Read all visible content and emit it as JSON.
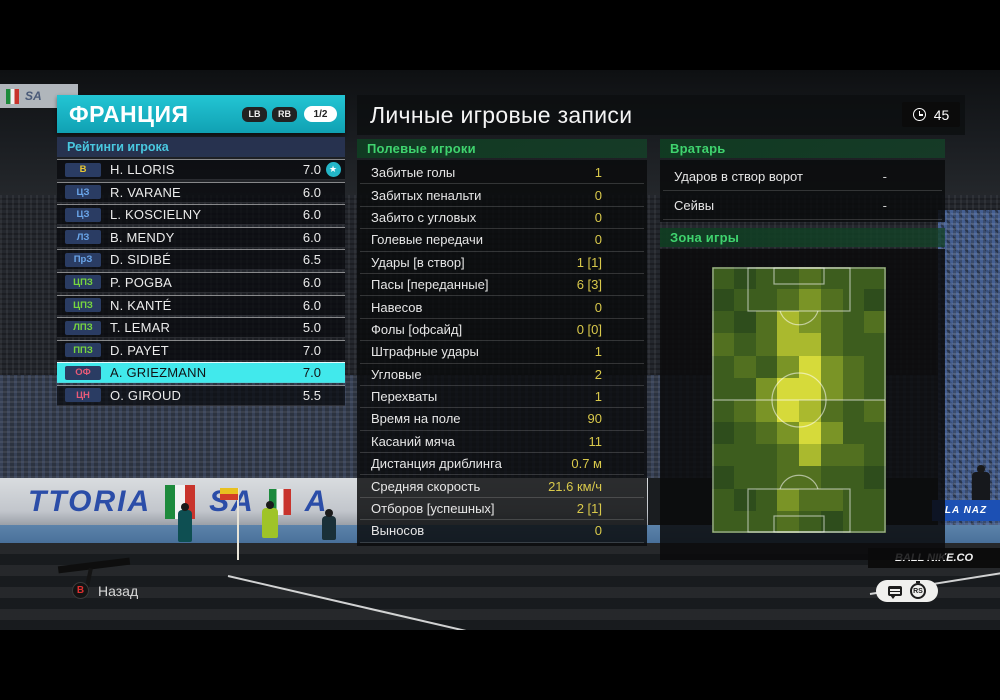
{
  "header": {
    "team": "ФРАНЦИЯ",
    "prev_button": "LB",
    "next_button": "RB",
    "page": "1/2"
  },
  "left_panel": {
    "section_title": "Рейтинги игрока",
    "role_colors": {
      "gk": "#e7c733",
      "df": "#6aa6ea",
      "mf": "#77d63e",
      "fw": "#e85a78"
    },
    "players": [
      {
        "pos": "В",
        "role": "gk",
        "name": "H. LLORIS",
        "rating": "7.0",
        "star": true
      },
      {
        "pos": "ЦЗ",
        "role": "df",
        "name": "R. VARANE",
        "rating": "6.0"
      },
      {
        "pos": "ЦЗ",
        "role": "df",
        "name": "L. KOSCIELNY",
        "rating": "6.0"
      },
      {
        "pos": "ЛЗ",
        "role": "df",
        "name": "B. MENDY",
        "rating": "6.0"
      },
      {
        "pos": "ПрЗ",
        "role": "df",
        "name": "D. SIDIBÉ",
        "rating": "6.5"
      },
      {
        "pos": "ЦПЗ",
        "role": "mf",
        "name": "P. POGBA",
        "rating": "6.0"
      },
      {
        "pos": "ЦПЗ",
        "role": "mf",
        "name": "N. KANTÉ",
        "rating": "6.0"
      },
      {
        "pos": "ЛПЗ",
        "role": "mf",
        "name": "T. LEMAR",
        "rating": "5.0"
      },
      {
        "pos": "ППЗ",
        "role": "mf",
        "name": "D. PAYET",
        "rating": "7.0"
      },
      {
        "pos": "ОФ",
        "role": "fw",
        "name": "A. GRIEZMANN",
        "rating": "7.0",
        "selected": true
      },
      {
        "pos": "ЦН",
        "role": "fw",
        "name": "O. GIROUD",
        "rating": "5.5"
      }
    ]
  },
  "main": {
    "title": "Личные игровые записи",
    "minute": "45",
    "field_section": {
      "title": "Полевые игроки",
      "rows": [
        {
          "label": "Забитые голы",
          "value": "1"
        },
        {
          "label": "Забитых пенальти",
          "value": "0"
        },
        {
          "label": "Забито с угловых",
          "value": "0"
        },
        {
          "label": "Голевые передачи",
          "value": "0"
        },
        {
          "label": "Удары [в створ]",
          "value": "1 [1]"
        },
        {
          "label": "Пасы [переданные]",
          "value": "6 [3]"
        },
        {
          "label": "Навесов",
          "value": "0"
        },
        {
          "label": "Фолы [офсайд]",
          "value": "0 [0]"
        },
        {
          "label": "Штрафные удары",
          "value": "1"
        },
        {
          "label": "Угловые",
          "value": "2"
        },
        {
          "label": "Перехваты",
          "value": "1"
        },
        {
          "label": "Время на поле",
          "value": "90"
        },
        {
          "label": "Касаний мяча",
          "value": "11"
        },
        {
          "label": "Дистанция дриблинга",
          "value": "0.7 м"
        },
        {
          "label": "Средняя скорость",
          "value": "21.6 км/ч"
        },
        {
          "label": "Отборов [успешных]",
          "value": "2 [1]"
        },
        {
          "label": "Выносов",
          "value": "0"
        }
      ]
    },
    "gk_section": {
      "title": "Вратарь",
      "rows": [
        {
          "label": "Ударов в створ ворот",
          "value": "-"
        },
        {
          "label": "Сейвы",
          "value": "-"
        }
      ]
    },
    "zone_section": {
      "title": "Зона игры"
    }
  },
  "zone_map": {
    "palette": [
      "#2e4d1c",
      "#3d5d1e",
      "#527020",
      "#7a9426",
      "#aab92e",
      "#d6da3a"
    ],
    "grid": [
      [
        1,
        0,
        1,
        1,
        2,
        1,
        1,
        1
      ],
      [
        0,
        1,
        1,
        2,
        3,
        2,
        1,
        0
      ],
      [
        1,
        0,
        2,
        4,
        3,
        2,
        1,
        2
      ],
      [
        2,
        1,
        2,
        4,
        4,
        2,
        1,
        1
      ],
      [
        1,
        2,
        1,
        3,
        5,
        3,
        2,
        1
      ],
      [
        1,
        1,
        3,
        5,
        5,
        3,
        2,
        1
      ],
      [
        1,
        2,
        3,
        5,
        4,
        2,
        1,
        2
      ],
      [
        0,
        1,
        2,
        3,
        5,
        3,
        1,
        1
      ],
      [
        1,
        1,
        1,
        2,
        4,
        2,
        2,
        1
      ],
      [
        0,
        1,
        1,
        2,
        2,
        1,
        1,
        0
      ],
      [
        1,
        0,
        1,
        3,
        2,
        2,
        1,
        1
      ],
      [
        1,
        1,
        1,
        2,
        1,
        0,
        1,
        1
      ]
    ]
  },
  "footer": {
    "back_button": "B",
    "back_label": "Назад",
    "right_stick": "RS"
  },
  "background": {
    "banner_top": "SA",
    "banner_left": "TTORIA",
    "banner_right": "SA",
    "banner_right2": "A",
    "crowd_sign": "LA NAZ",
    "ad_board": "BALL  NIKE.CO"
  },
  "colors": {
    "accent_teal": "#17b2c2",
    "selected_row": "#41e9ec",
    "section_cyan": "#49c8e0",
    "header_green": "#3fd36e",
    "value_yellow": "#d9c94b",
    "star_badge": "#23b6c8"
  }
}
